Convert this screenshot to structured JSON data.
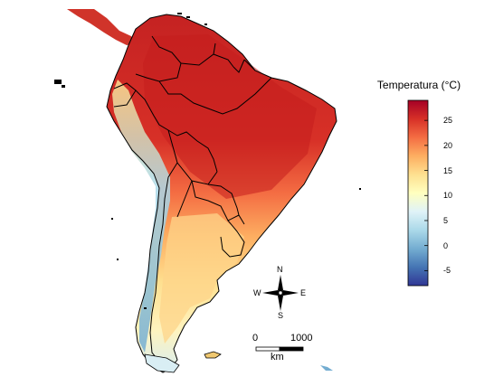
{
  "legend": {
    "title": "Temperatura (°C)",
    "ticks": [
      {
        "value": 25,
        "label": "25"
      },
      {
        "value": 20,
        "label": "20"
      },
      {
        "value": 15,
        "label": "15"
      },
      {
        "value": 10,
        "label": "10"
      },
      {
        "value": 5,
        "label": "5"
      },
      {
        "value": 0,
        "label": "0"
      },
      {
        "value": -5,
        "label": "-5"
      }
    ],
    "range": [
      -8,
      29
    ],
    "colors": [
      "#313695",
      "#4575b4",
      "#74add1",
      "#abd9e9",
      "#e0f3f8",
      "#ffffbf",
      "#fee090",
      "#fdae61",
      "#f46d43",
      "#d73027",
      "#a50026"
    ]
  },
  "compass": {
    "north": "N",
    "south": "S",
    "east": "E",
    "west": "W"
  },
  "scalebar": {
    "start_label": "0",
    "end_label": "1000",
    "unit": "km"
  },
  "map": {
    "fill_hot": "#c8201f",
    "fill_mid": "#f8a55a",
    "fill_cool": "#fde79a",
    "fill_cold": "#bde3ee",
    "border_color": "#000000"
  }
}
